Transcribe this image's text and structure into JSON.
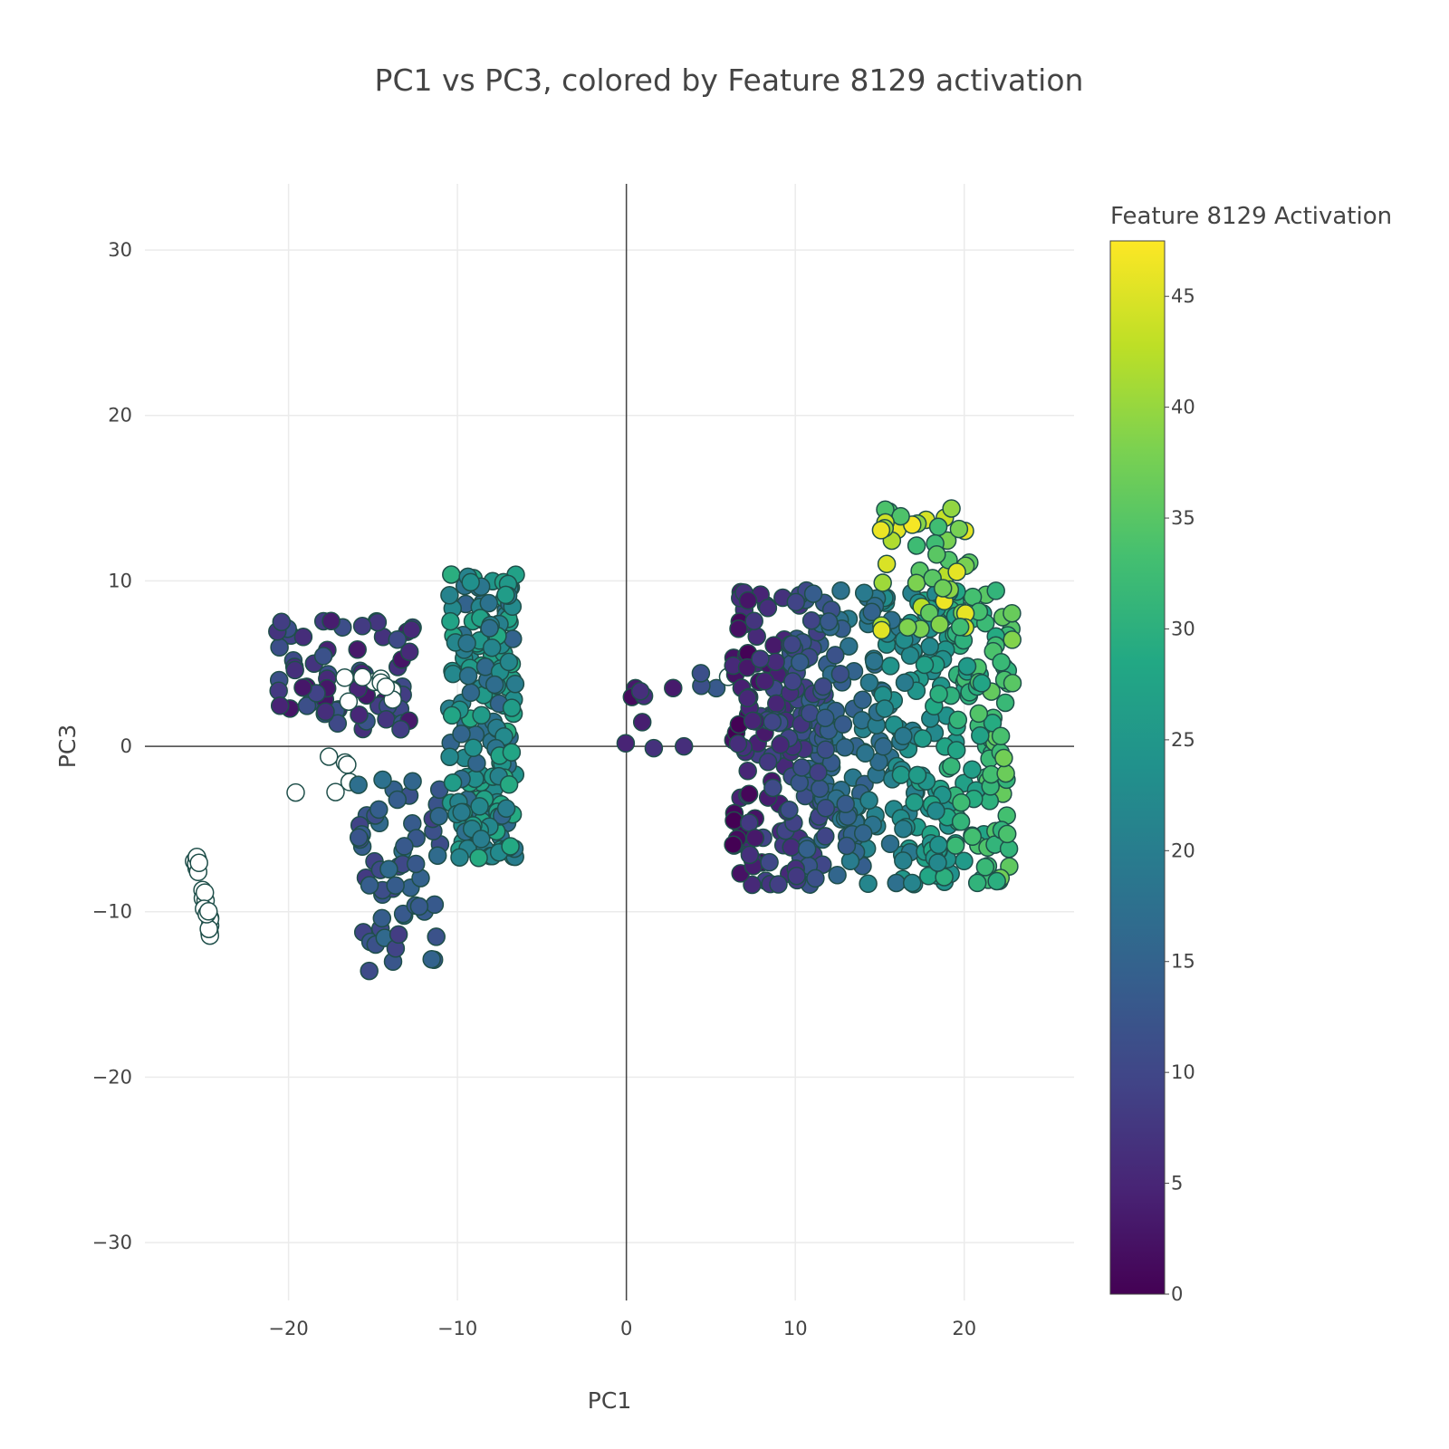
{
  "chart_data": {
    "type": "scatter",
    "title": "PC1 vs PC3, colored by Feature 8129 activation",
    "xlabel": "PC1",
    "ylabel": "PC3",
    "xlim": [
      -28.5,
      26.5
    ],
    "ylim": [
      -33.5,
      34
    ],
    "xticks": [
      -20,
      -10,
      0,
      10,
      20
    ],
    "yticks": [
      -30,
      -20,
      -10,
      0,
      10,
      20,
      30
    ],
    "xtick_labels": [
      "−20",
      "−10",
      "0",
      "10",
      "20"
    ],
    "ytick_labels": [
      "−30",
      "−20",
      "−10",
      "0",
      "10",
      "20",
      "30"
    ],
    "grid": true,
    "zero_lines": true,
    "colorscale": "Viridis",
    "colorbar": {
      "title": "Feature 8129 Activation",
      "range": [
        0,
        47.5
      ],
      "ticks": [
        0,
        5,
        10,
        15,
        20,
        25,
        30,
        35,
        40,
        45
      ],
      "tick_labels": [
        "0",
        "5",
        "10",
        "15",
        "20",
        "25",
        "30",
        "35",
        "40",
        "45"
      ]
    },
    "marker": {
      "line_color": "#1f4f4a",
      "null_color": "#ffffff"
    },
    "clusters": [
      {
        "name": "white strip",
        "x_range": [
          -25.6,
          -24.4
        ],
        "y_range": [
          -12,
          -6.3
        ],
        "count": 22,
        "activation": null
      },
      {
        "name": "top-left dark band",
        "x_range": [
          -21,
          -12.5
        ],
        "y_range": [
          1,
          7.6
        ],
        "count": 70,
        "activation_range": [
          2,
          12
        ]
      },
      {
        "name": "top-left white",
        "x_range": [
          -17,
          -13
        ],
        "y_range": [
          2.3,
          4.2
        ],
        "count": 9,
        "activation": null
      },
      {
        "name": "white scattered",
        "x_range": [
          -19.8,
          -14.5
        ],
        "y_range": [
          -3.3,
          0.2
        ],
        "count": 6,
        "activation": null
      },
      {
        "name": "lower-left arm",
        "x_range": [
          -16,
          -11
        ],
        "y_range": [
          -13.6,
          -2
        ],
        "count": 60,
        "activation_range": [
          8,
          18
        ]
      },
      {
        "name": "left vertical column",
        "x_range": [
          -10.5,
          -6.5
        ],
        "y_range": [
          -6.8,
          10.5
        ],
        "count": 180,
        "activation_range": [
          15,
          30
        ]
      },
      {
        "name": "center small group",
        "x_range": [
          -1,
          3.5
        ],
        "y_range": [
          -0.3,
          5.1
        ],
        "count": 9,
        "activation_range": [
          1,
          8
        ]
      },
      {
        "name": "mid-right bridge",
        "x_range": [
          3.5,
          6.5
        ],
        "y_range": [
          3.5,
          4.7
        ],
        "count": 4,
        "activation_range": [
          10,
          14
        ]
      },
      {
        "name": "center-right white",
        "x_range": [
          6,
          6.3
        ],
        "y_range": [
          4.1,
          4.4
        ],
        "count": 1,
        "activation": null
      },
      {
        "name": "right main cluster",
        "x_range": [
          6.3,
          23
        ],
        "y_range": [
          -8.4,
          9.5
        ],
        "count": 520,
        "activation_range": [
          2,
          35
        ]
      },
      {
        "name": "right yellow-green peak",
        "x_range": [
          15,
          20.5
        ],
        "y_range": [
          7,
          14.5
        ],
        "count": 45,
        "activation_range": [
          32,
          47
        ]
      }
    ]
  }
}
